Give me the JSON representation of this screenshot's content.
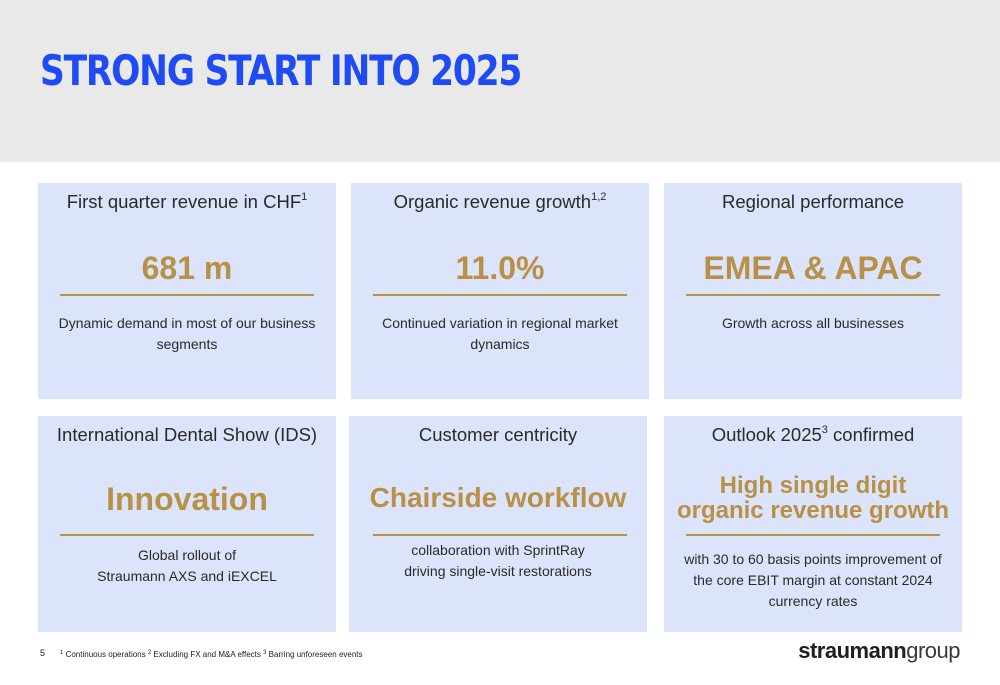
{
  "title": "STRONG START INTO 2025",
  "cards": [
    {
      "title": "First quarter revenue in CHF",
      "title_sup": "1",
      "value": "681 m",
      "description": "Dynamic demand in most of our business segments"
    },
    {
      "title": "Organic revenue growth",
      "title_sup": "1,2",
      "value": "11.0%",
      "description": "Continued variation in regional market dynamics"
    },
    {
      "title": "Regional performance",
      "title_sup": "",
      "value": "EMEA & APAC",
      "description": "Growth across all businesses"
    },
    {
      "title": "International Dental Show (IDS)",
      "title_sup": "",
      "value": "Innovation",
      "description_line1": "Global rollout of",
      "description_line2": "Straumann AXS and iEXCEL"
    },
    {
      "title": "Customer centricity",
      "title_sup": "",
      "value": "Chairside workflow",
      "description_line1": "collaboration with SprintRay",
      "description_line2": "driving single-visit restorations"
    },
    {
      "title_pre": "Outlook 2025",
      "title_sup": "3",
      "title_post": " confirmed",
      "value_line1": "High single digit",
      "value_line2": "organic revenue growth",
      "description": "with 30 to 60 basis points improvement of the core EBIT margin at constant 2024 currency rates"
    }
  ],
  "footer": {
    "page_number": "5",
    "fn1_sup": "1",
    "fn1": " Continuous operations ",
    "fn2_sup": "2",
    "fn2": " Excluding FX and M&A effects ",
    "fn3_sup": "3",
    "fn3": " Barring unforeseen events",
    "logo_bold": "straumann",
    "logo_light": "group"
  },
  "colors": {
    "title": "#1f4bf5",
    "accent": "#b89046",
    "card_bg": "#dce4fb",
    "header_bg": "#e9e9ea"
  }
}
